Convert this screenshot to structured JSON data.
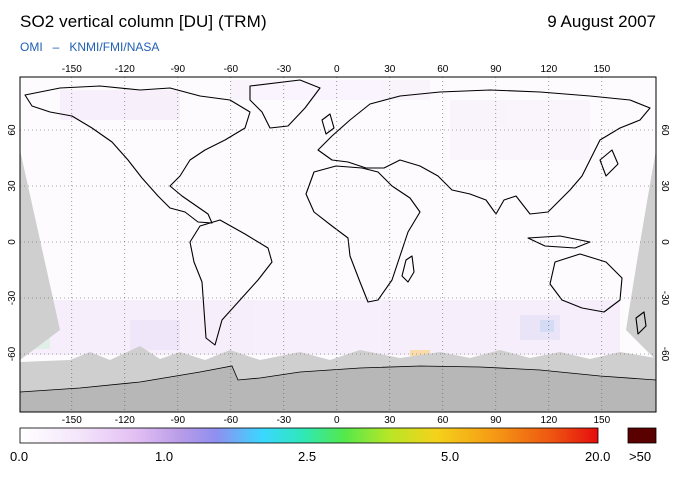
{
  "header": {
    "title": "SO2 vertical column [DU] (TRM)",
    "date": "9 August 2007",
    "instrument": "OMI",
    "separator": "–",
    "institutions": "KNMI/FMI/NASA"
  },
  "map": {
    "projection": "equirectangular",
    "lon_ticks": [
      "-150",
      "-120",
      "-90",
      "-60",
      "-30",
      "0",
      "30",
      "60",
      "90",
      "120",
      "150"
    ],
    "lat_ticks": [
      "60",
      "30",
      "0",
      "-30",
      "-60"
    ],
    "lon_range": [
      -180,
      180
    ],
    "lat_range": [
      -90,
      90
    ],
    "gridlines": "dotted",
    "no_data_color": "#cfcfcf",
    "coastline_color": "#000000"
  },
  "colorbar": {
    "labels": [
      "0.0",
      "1.0",
      "2.5",
      "5.0",
      "20.0"
    ],
    "overflow_label": ">50",
    "overflow_color": "#5a0000",
    "gradient_stops": [
      "#ffffff",
      "#f4e6fb",
      "#e3bff3",
      "#b79be8",
      "#8f8ff0",
      "#3ad8ff",
      "#2fe8b8",
      "#53e84c",
      "#b9e626",
      "#f5d21b",
      "#f59a14",
      "#ee5511",
      "#e50d0d"
    ]
  }
}
